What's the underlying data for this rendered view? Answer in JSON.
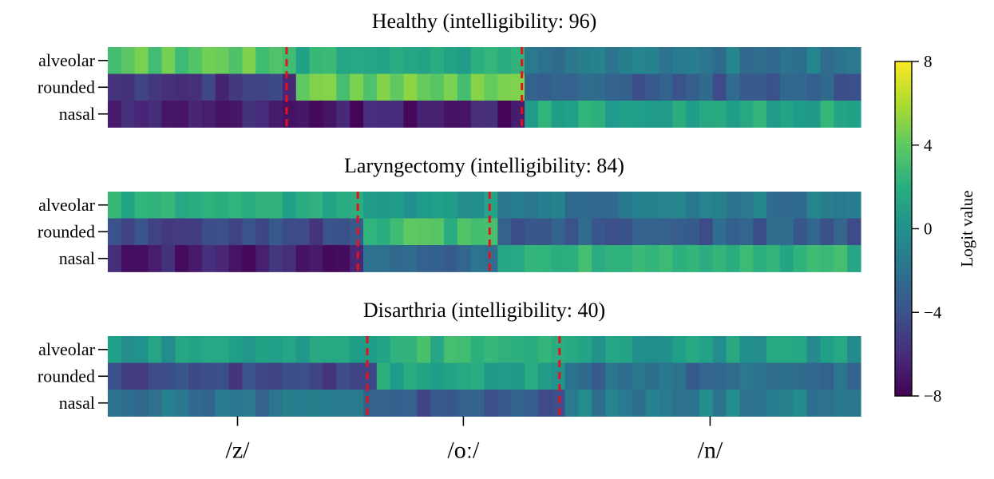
{
  "chart_data": {
    "type": "heatmap",
    "colormap": "viridis",
    "vmin": -8,
    "vmax": 8,
    "row_labels": [
      "alveolar",
      "rounded",
      "nasal"
    ],
    "x_tick_labels": [
      "/z/",
      "/oː/",
      "/n/"
    ],
    "colorbar": {
      "label": "Logit value",
      "ticks": [
        8,
        4,
        0,
        -4,
        -8
      ],
      "tick_labels": [
        "8",
        "4",
        "0",
        "−4",
        "−8"
      ]
    },
    "boundary_color": "#e8101a",
    "panels": [
      {
        "title": "Healthy (intelligibility: 96)",
        "n_frames": 56,
        "boundaries": [
          13.3,
          30.8
        ],
        "rows": {
          "alveolar": [
            [
              0,
              13.3,
              4
            ],
            [
              13.3,
              30.8,
              1.8
            ],
            [
              30.8,
              56,
              -1.6
            ]
          ],
          "rounded": [
            [
              0,
              13.3,
              -5.6
            ],
            [
              13.3,
              30.8,
              4.2
            ],
            [
              30.8,
              56,
              -3.5
            ]
          ],
          "nasal": [
            [
              0,
              13.3,
              -6.4
            ],
            [
              13.3,
              30.8,
              -6.8
            ],
            [
              30.8,
              56,
              1.6
            ]
          ]
        }
      },
      {
        "title": "Laryngectomy (intelligibility: 84)",
        "n_frames": 56,
        "boundaries": [
          18.6,
          28.4
        ],
        "rows": {
          "alveolar": [
            [
              0,
              18.6,
              2.1
            ],
            [
              18.6,
              28.4,
              0.5
            ],
            [
              28.4,
              56,
              -1.6
            ]
          ],
          "rounded": [
            [
              0,
              18.6,
              -4.6
            ],
            [
              18.6,
              28.4,
              2.9
            ],
            [
              28.4,
              56,
              -3.3
            ]
          ],
          "nasal": [
            [
              0,
              18.6,
              -6.5
            ],
            [
              18.6,
              28.4,
              -2.8
            ],
            [
              28.4,
              56,
              2.2
            ]
          ]
        }
      },
      {
        "title": "Disarthria (intelligibility: 40)",
        "n_frames": 56,
        "boundaries": [
          19.3,
          33.6
        ],
        "rows": {
          "alveolar": [
            [
              0,
              19.3,
              0.8
            ],
            [
              19.3,
              33.6,
              2.3
            ],
            [
              33.6,
              56,
              0.6
            ]
          ],
          "rounded": [
            [
              0,
              19.3,
              -4.6
            ],
            [
              19.3,
              33.6,
              1.4
            ],
            [
              33.6,
              56,
              -2.5
            ]
          ],
          "nasal": [
            [
              0,
              19.3,
              -2
            ],
            [
              19.3,
              33.6,
              -3.8
            ],
            [
              33.6,
              56,
              -1.2
            ]
          ]
        }
      }
    ]
  }
}
